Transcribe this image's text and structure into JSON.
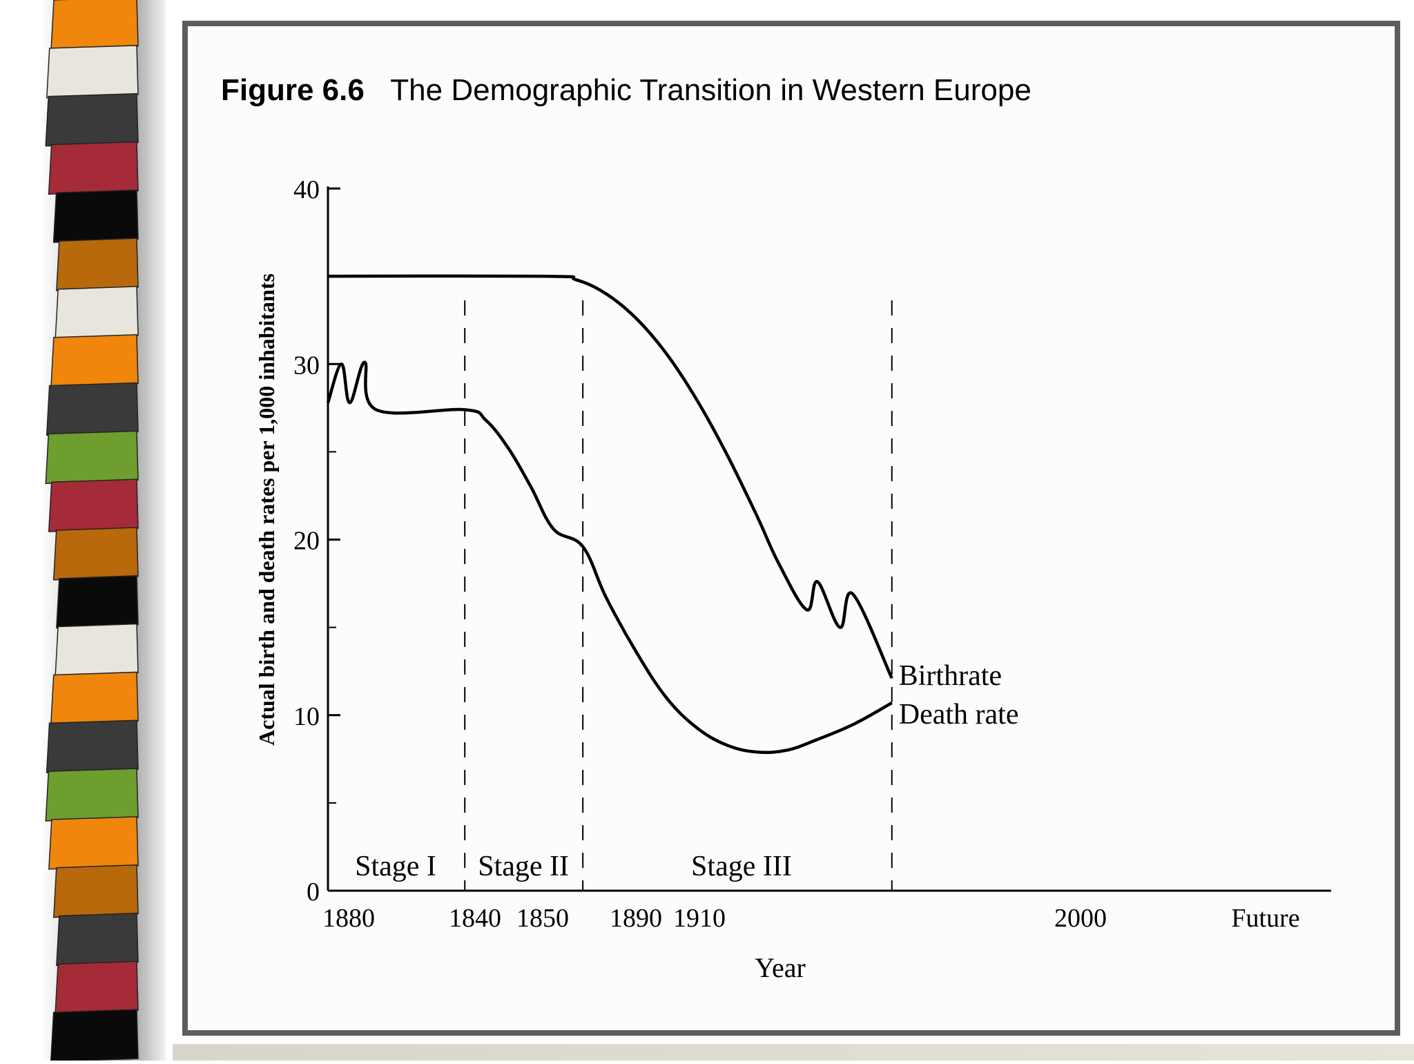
{
  "figure": {
    "number": "Figure 6.6",
    "title": "The Demographic Transition in Western Europe"
  },
  "chart_data": {
    "type": "line",
    "title": "Figure 6.6 The Demographic Transition in Western Europe",
    "xlabel": "Year",
    "ylabel": "Actual birth and death rates per 1,000 inhabitants",
    "ylim": [
      0,
      40
    ],
    "yticks_major": [
      "0",
      "10",
      "20",
      "30",
      "40"
    ],
    "yticks_minor": [
      5,
      15,
      25,
      35
    ],
    "xtick_labels": [
      "1880",
      "1840",
      "1850",
      "1890",
      "1910",
      "2000",
      "Future"
    ],
    "x_axis_note": "tick labels as printed; x positions below are relative positions along the axis (0 = start, 1 = end)",
    "x_axis_range": [
      0,
      1
    ],
    "stage_boundaries": [
      0.182,
      0.339,
      0.75
    ],
    "stages": [
      {
        "label": "Stage I",
        "x": 0.09
      },
      {
        "label": "Stage II",
        "x": 0.26
      },
      {
        "label": "Stage III",
        "x": 0.55
      }
    ],
    "series": [
      {
        "name": "Birthrate",
        "points": [
          [
            0.0,
            35.0
          ],
          [
            0.29,
            35.0
          ],
          [
            0.33,
            34.8
          ],
          [
            0.37,
            34.0
          ],
          [
            0.41,
            32.6
          ],
          [
            0.45,
            30.6
          ],
          [
            0.49,
            28.0
          ],
          [
            0.53,
            24.9
          ],
          [
            0.57,
            21.4
          ],
          [
            0.6,
            18.6
          ],
          [
            0.637,
            16.0
          ],
          [
            0.651,
            17.6
          ],
          [
            0.681,
            15.0
          ],
          [
            0.698,
            16.9
          ],
          [
            0.75,
            12.1
          ]
        ]
      },
      {
        "name": "Death rate",
        "points": [
          [
            0.0,
            27.8
          ],
          [
            0.018,
            30.0
          ],
          [
            0.029,
            27.8
          ],
          [
            0.049,
            30.1
          ],
          [
            0.064,
            27.4
          ],
          [
            0.182,
            27.4
          ],
          [
            0.21,
            26.8
          ],
          [
            0.24,
            25.2
          ],
          [
            0.27,
            23.0
          ],
          [
            0.3,
            20.6
          ],
          [
            0.339,
            19.6
          ],
          [
            0.37,
            16.7
          ],
          [
            0.41,
            13.6
          ],
          [
            0.45,
            11.0
          ],
          [
            0.49,
            9.3
          ],
          [
            0.53,
            8.3
          ],
          [
            0.57,
            7.9
          ],
          [
            0.61,
            8.0
          ],
          [
            0.65,
            8.6
          ],
          [
            0.7,
            9.5
          ],
          [
            0.75,
            10.7
          ]
        ]
      }
    ],
    "grid": false,
    "legend": "direct labels at the right end of each line"
  }
}
